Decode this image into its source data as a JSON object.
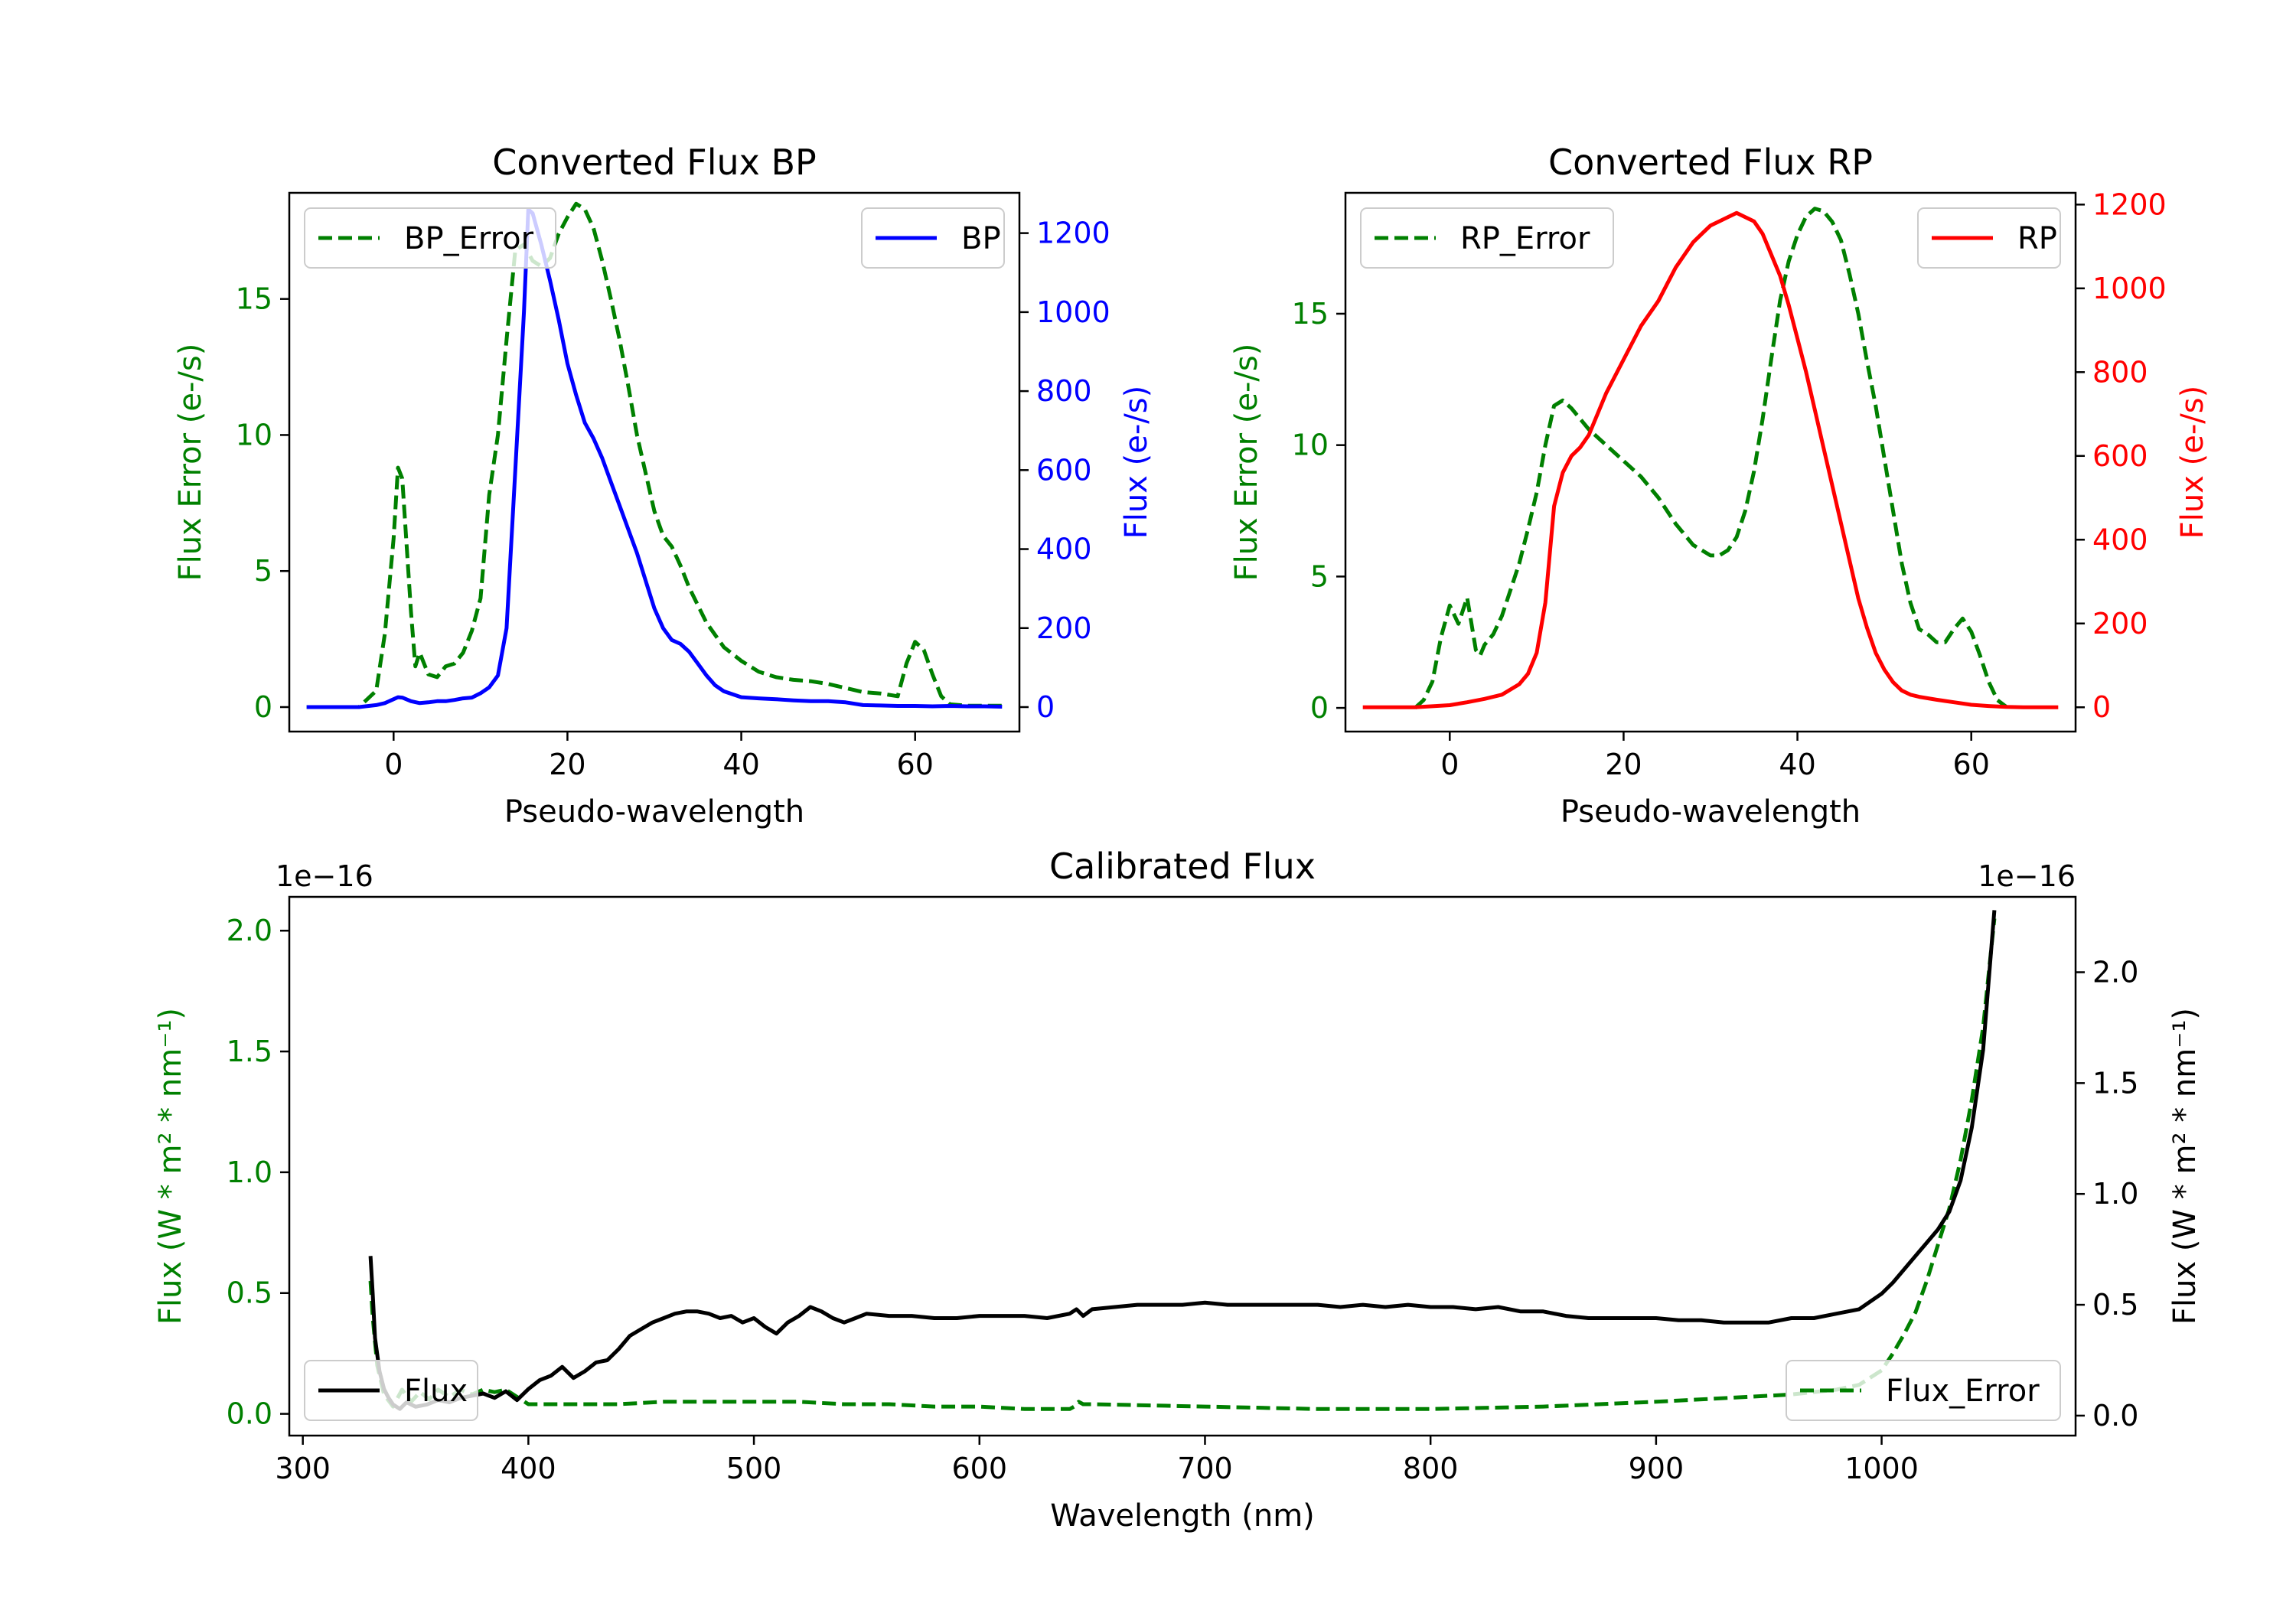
{
  "chart_data": [
    {
      "id": "bp",
      "type": "line",
      "title": "Converted Flux BP",
      "xlabel": "Pseudo-wavelength",
      "xlim": [
        -12,
        72
      ],
      "xticks": [
        0,
        20,
        40,
        60
      ],
      "y_left": {
        "label": "Flux Error (e-/s)",
        "color": "#008000",
        "lim": [
          -0.9,
          18.9
        ],
        "ticks": [
          0,
          5,
          10,
          15
        ]
      },
      "y_right": {
        "label": "Flux (e-/s)",
        "color": "#0000ff",
        "lim": [
          -62,
          1302
        ],
        "ticks": [
          0,
          200,
          400,
          600,
          800,
          1000,
          1200
        ]
      },
      "series": [
        {
          "name": "BP_Error",
          "axis": "left",
          "color": "#008000",
          "dash": true,
          "x": [
            -10,
            -4,
            -2,
            -1,
            0,
            0.5,
            1,
            2,
            2.5,
            3,
            4,
            5,
            6,
            7,
            8,
            9,
            10,
            11,
            12,
            13,
            14,
            15,
            16,
            17,
            18,
            19,
            20,
            21,
            22,
            23,
            24,
            25,
            26,
            27,
            28,
            29,
            30,
            31,
            32,
            33,
            34,
            36,
            38,
            40,
            42,
            44,
            46,
            48,
            50,
            52,
            54,
            56,
            57,
            58,
            59,
            60,
            61,
            62,
            63,
            64,
            66,
            70
          ],
          "y": [
            0,
            0,
            0.6,
            2.7,
            6.2,
            8.8,
            8.4,
            3.5,
            1.5,
            2.0,
            1.2,
            1.1,
            1.5,
            1.6,
            2.0,
            2.8,
            4.0,
            7.8,
            10.0,
            13.5,
            16.8,
            17.0,
            16.4,
            16.2,
            16.5,
            17.4,
            18.0,
            18.5,
            18.3,
            17.6,
            16.4,
            15.0,
            13.5,
            11.8,
            10.0,
            8.6,
            7.2,
            6.3,
            5.9,
            5.2,
            4.4,
            3.1,
            2.2,
            1.7,
            1.3,
            1.1,
            1.0,
            0.95,
            0.85,
            0.7,
            0.55,
            0.5,
            0.45,
            0.4,
            1.6,
            2.4,
            2.1,
            1.2,
            0.4,
            0.1,
            0.05,
            0.05
          ]
        },
        {
          "name": "BP",
          "axis": "right",
          "color": "#0000ff",
          "dash": false,
          "x": [
            -10,
            -4,
            -2,
            -1,
            0,
            0.5,
            1,
            2,
            3,
            4,
            5,
            6,
            7,
            8,
            9,
            10,
            11,
            12,
            13,
            14,
            15,
            15.5,
            16,
            17,
            18,
            19,
            20,
            21,
            22,
            23,
            24,
            25,
            26,
            27,
            28,
            29,
            30,
            31,
            32,
            33,
            34,
            35,
            36,
            37,
            38,
            40,
            42,
            44,
            46,
            48,
            50,
            52,
            54,
            56,
            58,
            60,
            62,
            64,
            66,
            68,
            70
          ],
          "y": [
            0,
            0,
            5,
            10,
            20,
            25,
            24,
            15,
            10,
            12,
            15,
            15,
            18,
            22,
            24,
            35,
            50,
            80,
            200,
            600,
            1000,
            1260,
            1250,
            1170,
            1080,
            980,
            870,
            790,
            720,
            680,
            630,
            570,
            510,
            450,
            390,
            320,
            250,
            200,
            170,
            160,
            140,
            110,
            80,
            55,
            40,
            25,
            22,
            20,
            17,
            15,
            15,
            12,
            5,
            4,
            3,
            3,
            2,
            3,
            2,
            2,
            1
          ]
        }
      ],
      "legends": {
        "left": {
          "label": "BP_Error",
          "placement": "upper left"
        },
        "right": {
          "label": "BP",
          "placement": "upper right"
        }
      }
    },
    {
      "id": "rp",
      "type": "line",
      "title": "Converted Flux RP",
      "xlabel": "Pseudo-wavelength",
      "xlim": [
        -12,
        72
      ],
      "xticks": [
        0,
        20,
        40,
        60
      ],
      "y_left": {
        "label": "Flux Error (e-/s)",
        "color": "#008000",
        "lim": [
          -0.9,
          19.6
        ],
        "ticks": [
          0,
          5,
          10,
          15
        ]
      },
      "y_right": {
        "label": "Flux (e-/s)",
        "color": "#ff0000",
        "lim": [
          -58,
          1228
        ],
        "ticks": [
          0,
          200,
          400,
          600,
          800,
          1000,
          1200
        ]
      },
      "series": [
        {
          "name": "RP_Error",
          "axis": "left",
          "color": "#008000",
          "dash": true,
          "x": [
            -4,
            -3,
            -2,
            -1,
            0,
            1,
            2,
            3,
            3.5,
            4,
            5,
            6,
            7,
            8,
            9,
            10,
            11,
            12,
            13,
            14,
            15,
            16,
            18,
            20,
            22,
            24,
            26,
            28,
            29,
            30,
            31,
            32,
            33,
            34,
            35,
            36,
            37,
            38,
            39,
            40,
            41,
            42,
            43,
            44,
            45,
            46,
            47,
            48,
            49,
            50,
            51,
            52,
            53,
            54,
            55,
            56,
            57,
            58,
            59,
            60,
            61,
            62,
            63,
            64
          ],
          "y": [
            0,
            0.3,
            1.0,
            2.7,
            3.9,
            3.2,
            4.2,
            2.2,
            2.0,
            2.4,
            2.8,
            3.5,
            4.5,
            5.5,
            6.8,
            8.2,
            10.0,
            11.5,
            11.7,
            11.4,
            11.0,
            10.6,
            10.0,
            9.4,
            8.8,
            8.0,
            7.0,
            6.2,
            6.0,
            5.8,
            5.8,
            6.0,
            6.5,
            7.5,
            9.0,
            11.0,
            13.3,
            15.5,
            17.0,
            18.0,
            18.7,
            19.0,
            18.9,
            18.5,
            17.8,
            16.5,
            15.0,
            13.2,
            11.5,
            9.5,
            7.5,
            5.5,
            4.0,
            3.0,
            2.8,
            2.5,
            2.5,
            3.0,
            3.4,
            2.9,
            2.0,
            1.0,
            0.3,
            0.05
          ]
        },
        {
          "name": "RP",
          "axis": "right",
          "color": "#ff0000",
          "dash": false,
          "x": [
            -10,
            -4,
            0,
            2,
            4,
            6,
            8,
            9,
            10,
            11,
            12,
            13,
            14,
            15,
            16,
            18,
            20,
            22,
            24,
            25,
            26,
            27,
            28,
            29,
            30,
            31,
            32,
            33,
            34,
            35,
            36,
            37,
            38,
            39,
            40,
            41,
            42,
            43,
            44,
            45,
            46,
            47,
            48,
            49,
            50,
            51,
            52,
            53,
            54,
            56,
            58,
            60,
            62,
            64,
            66,
            70
          ],
          "y": [
            0,
            0,
            5,
            12,
            20,
            30,
            55,
            80,
            130,
            250,
            480,
            560,
            600,
            620,
            650,
            750,
            830,
            910,
            970,
            1010,
            1050,
            1080,
            1110,
            1130,
            1150,
            1160,
            1170,
            1180,
            1170,
            1160,
            1130,
            1080,
            1030,
            960,
            880,
            800,
            710,
            620,
            530,
            440,
            350,
            260,
            190,
            130,
            90,
            60,
            40,
            30,
            25,
            18,
            12,
            6,
            3,
            1,
            0,
            0
          ]
        }
      ],
      "legends": {
        "left": {
          "label": "RP_Error",
          "placement": "upper left"
        },
        "right": {
          "label": "RP",
          "placement": "upper right"
        }
      }
    },
    {
      "id": "calibrated",
      "type": "line",
      "title": "Calibrated Flux",
      "xlabel": "Wavelength (nm)",
      "xlim": [
        294,
        1086
      ],
      "xticks": [
        300,
        400,
        500,
        600,
        700,
        800,
        900,
        1000
      ],
      "y_left": {
        "label": "Flux (W * m² * nm⁻¹)",
        "color": "#008000",
        "lim": [
          -0.09,
          2.14
        ],
        "ticks": [
          0.0,
          0.5,
          1.0,
          1.5,
          2.0
        ],
        "tick_labels": [
          "0.0",
          "0.5",
          "1.0",
          "1.5",
          "2.0"
        ],
        "offset_text": "1e−16"
      },
      "y_right": {
        "label": "Flux (W * m² * nm⁻¹)",
        "color": "#000000",
        "lim": [
          -0.09,
          2.34
        ],
        "ticks": [
          0.0,
          0.5,
          1.0,
          1.5,
          2.0
        ],
        "tick_labels": [
          "0.0",
          "0.5",
          "1.0",
          "1.5",
          "2.0"
        ],
        "offset_text": "1e−16"
      },
      "series": [
        {
          "name": "Flux_Error",
          "axis": "left",
          "color": "#008000",
          "dash": true,
          "x": [
            330,
            331,
            333,
            336,
            340,
            344,
            348,
            352,
            356,
            360,
            365,
            370,
            375,
            380,
            385,
            390,
            395,
            400,
            420,
            440,
            460,
            480,
            500,
            520,
            540,
            560,
            580,
            600,
            620,
            640,
            642,
            644,
            646,
            650,
            700,
            750,
            800,
            850,
            900,
            940,
            960,
            980,
            990,
            1000,
            1005,
            1010,
            1015,
            1020,
            1025,
            1030,
            1035,
            1040,
            1045,
            1050
          ],
          "y": [
            0.55,
            0.4,
            0.2,
            0.08,
            0.03,
            0.1,
            0.05,
            0.09,
            0.06,
            0.1,
            0.07,
            0.1,
            0.08,
            0.1,
            0.09,
            0.1,
            0.07,
            0.04,
            0.04,
            0.04,
            0.05,
            0.05,
            0.05,
            0.05,
            0.04,
            0.04,
            0.03,
            0.03,
            0.02,
            0.02,
            0.03,
            0.05,
            0.04,
            0.04,
            0.03,
            0.02,
            0.02,
            0.03,
            0.05,
            0.07,
            0.08,
            0.1,
            0.12,
            0.18,
            0.25,
            0.33,
            0.42,
            0.55,
            0.7,
            0.85,
            1.05,
            1.3,
            1.6,
            2.05
          ]
        },
        {
          "name": "Flux",
          "axis": "right",
          "color": "#000000",
          "dash": false,
          "x": [
            330,
            331,
            332,
            334,
            336,
            338,
            340,
            343,
            346,
            350,
            355,
            360,
            365,
            370,
            375,
            380,
            385,
            390,
            395,
            400,
            405,
            410,
            415,
            420,
            425,
            430,
            435,
            440,
            445,
            450,
            455,
            460,
            465,
            470,
            475,
            480,
            485,
            490,
            495,
            500,
            505,
            510,
            515,
            520,
            525,
            530,
            535,
            540,
            545,
            550,
            560,
            570,
            580,
            590,
            600,
            610,
            620,
            630,
            640,
            643,
            646,
            650,
            660,
            670,
            680,
            690,
            700,
            710,
            720,
            730,
            740,
            750,
            760,
            770,
            780,
            790,
            800,
            810,
            820,
            830,
            840,
            850,
            860,
            870,
            880,
            890,
            900,
            910,
            920,
            930,
            940,
            950,
            960,
            970,
            980,
            990,
            1000,
            1005,
            1010,
            1015,
            1020,
            1025,
            1030,
            1035,
            1040,
            1045,
            1050
          ],
          "y": [
            0.72,
            0.55,
            0.35,
            0.2,
            0.12,
            0.08,
            0.05,
            0.03,
            0.06,
            0.04,
            0.05,
            0.07,
            0.06,
            0.08,
            0.09,
            0.1,
            0.08,
            0.11,
            0.07,
            0.12,
            0.16,
            0.18,
            0.22,
            0.17,
            0.2,
            0.24,
            0.25,
            0.3,
            0.36,
            0.39,
            0.42,
            0.44,
            0.46,
            0.47,
            0.47,
            0.46,
            0.44,
            0.45,
            0.42,
            0.44,
            0.4,
            0.37,
            0.42,
            0.45,
            0.49,
            0.47,
            0.44,
            0.42,
            0.44,
            0.46,
            0.45,
            0.45,
            0.44,
            0.44,
            0.45,
            0.45,
            0.45,
            0.44,
            0.46,
            0.48,
            0.45,
            0.48,
            0.49,
            0.5,
            0.5,
            0.5,
            0.51,
            0.5,
            0.5,
            0.5,
            0.5,
            0.5,
            0.49,
            0.5,
            0.49,
            0.5,
            0.49,
            0.49,
            0.48,
            0.49,
            0.47,
            0.47,
            0.45,
            0.44,
            0.44,
            0.44,
            0.44,
            0.43,
            0.43,
            0.42,
            0.42,
            0.42,
            0.44,
            0.44,
            0.46,
            0.48,
            0.55,
            0.6,
            0.66,
            0.72,
            0.78,
            0.84,
            0.92,
            1.06,
            1.3,
            1.65,
            2.28
          ]
        }
      ],
      "legends": {
        "right_series": {
          "label": "Flux",
          "placement": "lower left"
        },
        "left_series": {
          "label": "Flux_Error",
          "placement": "lower right"
        }
      }
    }
  ]
}
